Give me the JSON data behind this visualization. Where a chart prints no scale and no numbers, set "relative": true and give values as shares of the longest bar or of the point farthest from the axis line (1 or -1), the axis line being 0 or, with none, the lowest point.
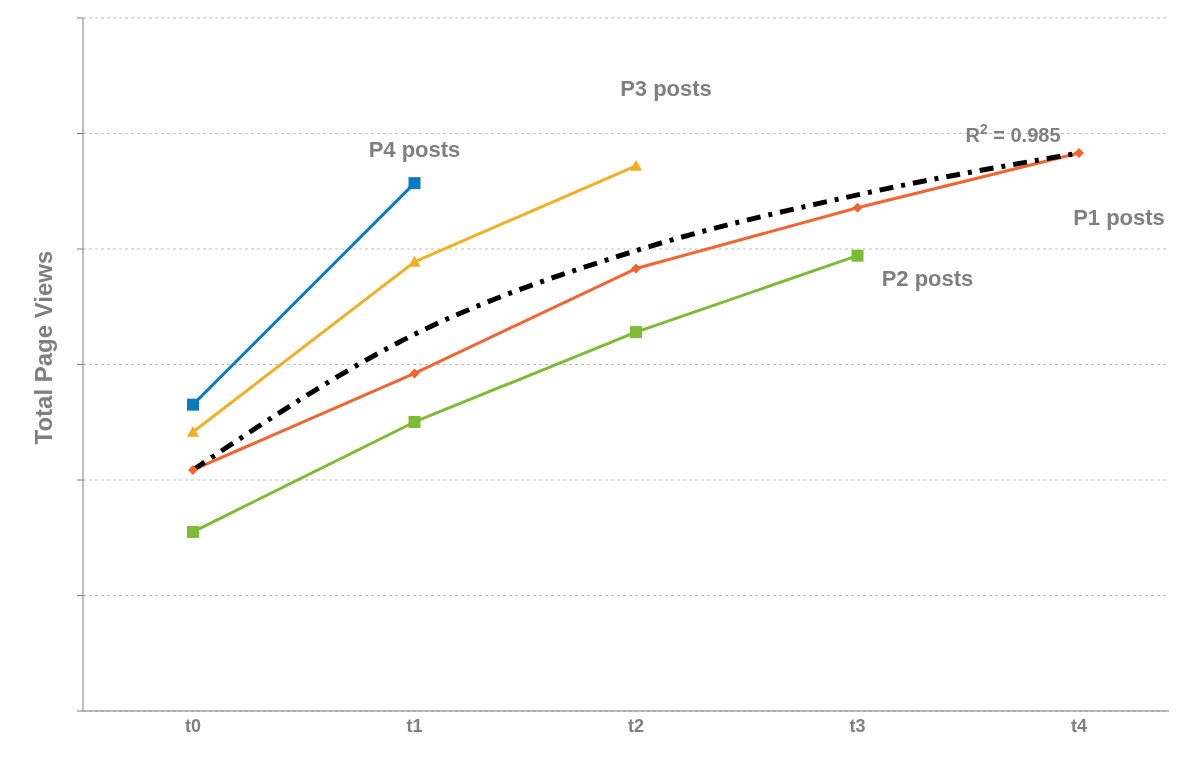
{
  "chart_data": {
    "type": "line",
    "relative": true,
    "ylabel": "Total Page Views",
    "categories": [
      "t0",
      "t1",
      "t2",
      "t3",
      "t4"
    ],
    "grid": "y",
    "series": [
      {
        "name": "P4 posts",
        "color": "#0a7bc1",
        "marker": "square",
        "values": [
          0.549,
          0.946,
          null,
          null,
          null
        ]
      },
      {
        "name": "P3 posts",
        "color": "#f4ae22",
        "marker": "triangle",
        "values": [
          0.5,
          0.805,
          0.977,
          null,
          null
        ]
      },
      {
        "name": "P1 posts",
        "color": "#f26532",
        "marker": "diamond",
        "values": [
          0.432,
          0.605,
          0.793,
          0.902,
          1
        ]
      },
      {
        "name": "P2 posts",
        "color": "#7dbb35",
        "marker": "square",
        "values": [
          0.321,
          0.518,
          0.679,
          0.816,
          null
        ]
      },
      {
        "type": "line",
        "color": "#000000",
        "marker": "none",
        "line_style": "dashed",
        "values": [
          0.432,
          0.675,
          0.825,
          0.925,
          1
        ]
      }
    ],
    "annotations": [
      "R$^{2}$ = 0.985"
    ]
  }
}
